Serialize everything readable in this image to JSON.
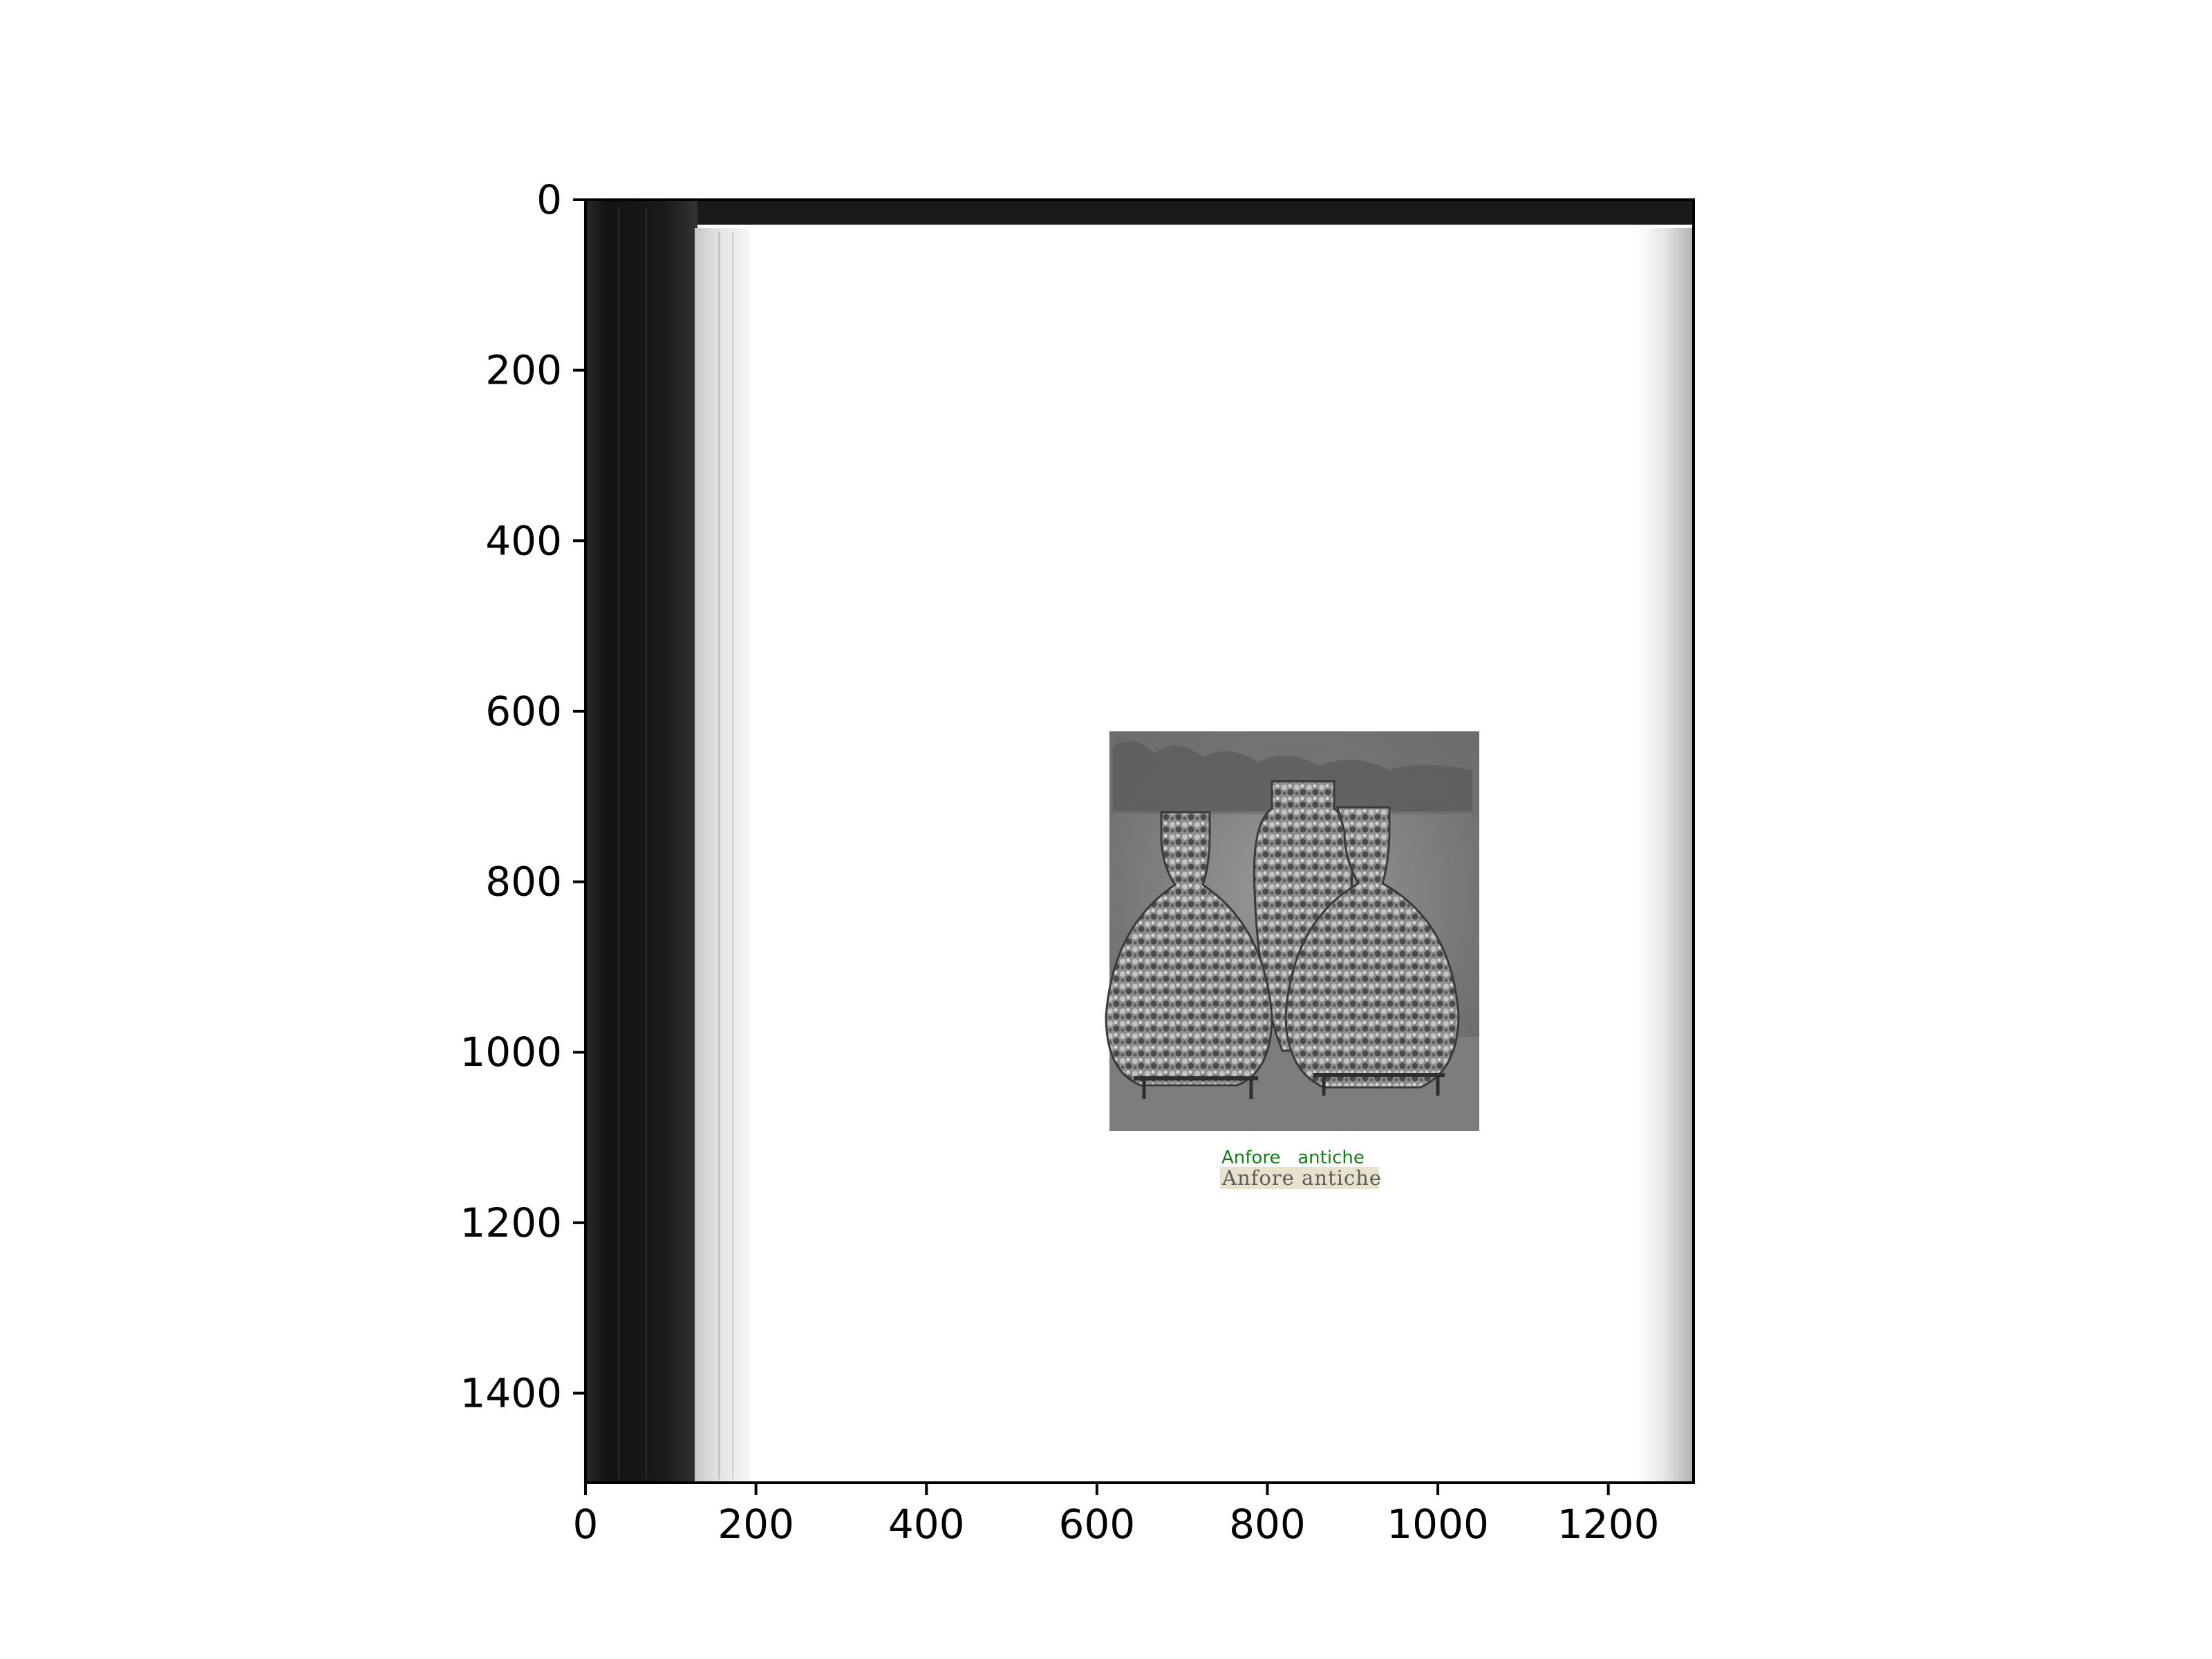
{
  "axes": {
    "x_ticks": [
      "0",
      "200",
      "400",
      "600",
      "800",
      "1000",
      "1200"
    ],
    "y_ticks": [
      "0",
      "200",
      "400",
      "600",
      "800",
      "1000",
      "1200",
      "1400"
    ],
    "x_range": [
      0,
      1300
    ],
    "y_range": [
      1505,
      0
    ],
    "y_inverted": true
  },
  "scan": {
    "description": "scanned book page with photograph",
    "photo": "three encrusted antique amphorae"
  },
  "ocr": {
    "detected_text": "Anfore   antiche",
    "detected_text_color": "#1a7a1a"
  },
  "caption": {
    "text": "Anfore antiche",
    "highlight_color": "#e8e2cc"
  },
  "colors": {
    "spine_dark": "#161616",
    "page": "#ffffff",
    "axis": "#000000"
  }
}
